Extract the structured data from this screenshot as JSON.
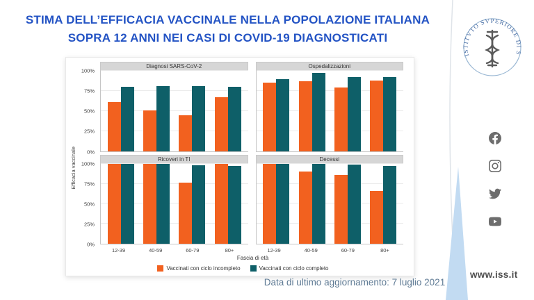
{
  "slide": {
    "title_line1": "STIMA DELL’EFFICACIA VACCINALE NELLA POPOLAZIONE ITALIANA",
    "title_line2": "SOPRA 12 ANNI NEI CASI DI COVID-19 DIAGNOSTICATI",
    "update_note": "Data di ultimo aggiornamento: 7 luglio 2021",
    "colors": {
      "title_blue": "#2353c4",
      "wedge_blue": "#c2dbf2"
    }
  },
  "chart_data": {
    "type": "bar",
    "facets": [
      "Diagnosi SARS-CoV-2",
      "Ospedalizzazioni",
      "Ricoveri in TI",
      "Decessi"
    ],
    "categories": [
      "12-39",
      "40-59",
      "60-79",
      "80+"
    ],
    "xlabel": "Fascia di età",
    "ylabel": "Efficacia vaccinale",
    "y_ticks": [
      "0%",
      "25%",
      "50%",
      "75%",
      "100%"
    ],
    "ylim": [
      0,
      100
    ],
    "grid": true,
    "legend_position": "bottom",
    "series_names": [
      "Vaccinati con ciclo incompleto",
      "Vaccinati con ciclo completo"
    ],
    "colors": {
      "incompleto": "#f2611f",
      "completo": "#0e5f68"
    },
    "panels": [
      {
        "title": "Diagnosi SARS-CoV-2",
        "incompleto": [
          61,
          51,
          45,
          67
        ],
        "completo": [
          80,
          81,
          81,
          80
        ]
      },
      {
        "title": "Ospedalizzazioni",
        "incompleto": [
          85,
          87,
          79,
          88
        ],
        "completo": [
          90,
          97,
          92,
          92
        ]
      },
      {
        "title": "Ricoveri in TI",
        "incompleto": [
          100,
          100,
          76,
          100
        ],
        "completo": [
          100,
          100,
          98,
          97
        ]
      },
      {
        "title": "Decessi",
        "incompleto": [
          100,
          90,
          86,
          66
        ],
        "completo": [
          100,
          100,
          99,
          97
        ]
      }
    ]
  },
  "sidebar": {
    "logo_text": "ISTITVTO SVPERIORE DI SANITÀ",
    "website": "www.iss.it",
    "social": [
      "facebook",
      "instagram",
      "twitter",
      "youtube"
    ]
  }
}
